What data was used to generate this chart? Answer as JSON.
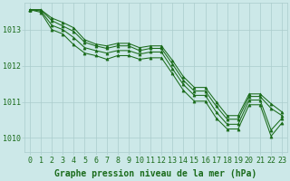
{
  "background_color": "#cce8e8",
  "grid_color": "#aacccc",
  "line_color": "#1a6b1a",
  "marker_color": "#1a6b1a",
  "xlabel": "Graphe pression niveau de la mer (hPa)",
  "xlabel_fontsize": 7,
  "tick_fontsize": 6,
  "ytick_labels": [
    1010,
    1011,
    1012,
    1013
  ],
  "ylim": [
    1009.6,
    1013.75
  ],
  "xlim": [
    -0.5,
    23.5
  ],
  "series": [
    [
      1013.55,
      1013.55,
      1013.32,
      1013.2,
      1013.05,
      1012.72,
      1012.6,
      1012.55,
      1012.62,
      1012.62,
      1012.5,
      1012.55,
      1012.55,
      1012.15,
      1011.7,
      1011.4,
      1011.4,
      1011.0,
      1010.62,
      1010.62,
      1011.22,
      1011.22,
      1010.95,
      1010.72
    ],
    [
      1013.55,
      1013.55,
      1013.25,
      1013.1,
      1012.95,
      1012.65,
      1012.55,
      1012.48,
      1012.55,
      1012.55,
      1012.42,
      1012.48,
      1012.48,
      1012.05,
      1011.6,
      1011.3,
      1011.3,
      1010.88,
      1010.52,
      1010.52,
      1011.15,
      1011.15,
      1010.82,
      1010.62
    ],
    [
      1013.55,
      1013.52,
      1013.12,
      1013.0,
      1012.78,
      1012.5,
      1012.42,
      1012.35,
      1012.42,
      1012.42,
      1012.32,
      1012.38,
      1012.38,
      1011.92,
      1011.48,
      1011.18,
      1011.18,
      1010.72,
      1010.38,
      1010.38,
      1011.05,
      1011.05,
      1010.22,
      1010.55
    ],
    [
      1013.55,
      1013.48,
      1013.0,
      1012.88,
      1012.58,
      1012.35,
      1012.28,
      1012.18,
      1012.28,
      1012.28,
      1012.18,
      1012.22,
      1012.22,
      1011.78,
      1011.32,
      1011.02,
      1011.02,
      1010.55,
      1010.25,
      1010.25,
      1010.92,
      1010.92,
      1010.05,
      1010.42
    ]
  ]
}
